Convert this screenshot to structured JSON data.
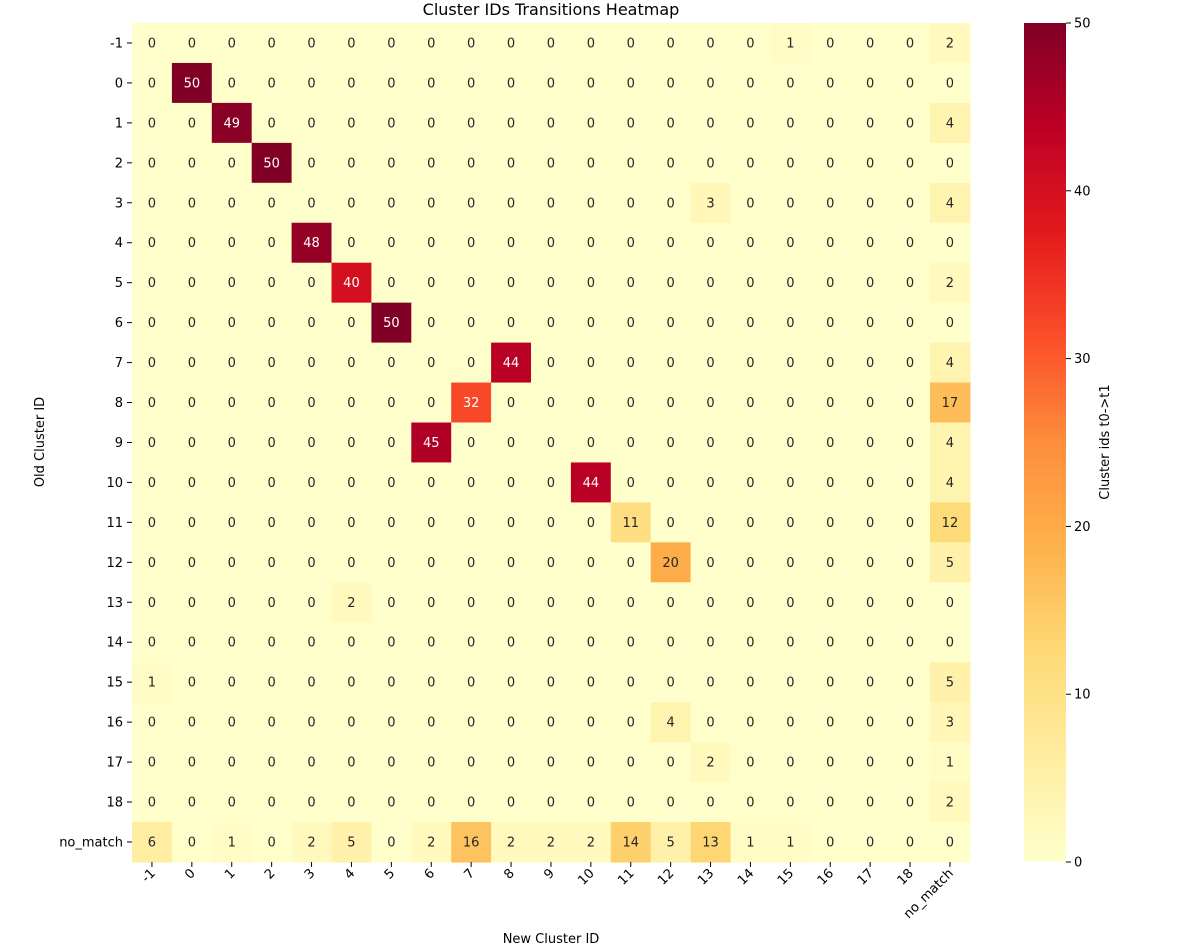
{
  "chart_data": {
    "type": "heatmap",
    "title": "Cluster IDs Transitions Heatmap",
    "xlabel": "New Cluster ID",
    "ylabel": "Old Cluster ID",
    "x_categories": [
      "-1",
      "0",
      "1",
      "2",
      "3",
      "4",
      "5",
      "6",
      "7",
      "8",
      "9",
      "10",
      "11",
      "12",
      "13",
      "14",
      "15",
      "16",
      "17",
      "18",
      "no_match"
    ],
    "y_categories": [
      "-1",
      "0",
      "1",
      "2",
      "3",
      "4",
      "5",
      "6",
      "7",
      "8",
      "9",
      "10",
      "11",
      "12",
      "13",
      "14",
      "15",
      "16",
      "17",
      "18",
      "no_match"
    ],
    "values": [
      [
        0,
        0,
        0,
        0,
        0,
        0,
        0,
        0,
        0,
        0,
        0,
        0,
        0,
        0,
        0,
        0,
        1,
        0,
        0,
        0,
        2
      ],
      [
        0,
        50,
        0,
        0,
        0,
        0,
        0,
        0,
        0,
        0,
        0,
        0,
        0,
        0,
        0,
        0,
        0,
        0,
        0,
        0,
        0
      ],
      [
        0,
        0,
        49,
        0,
        0,
        0,
        0,
        0,
        0,
        0,
        0,
        0,
        0,
        0,
        0,
        0,
        0,
        0,
        0,
        0,
        4
      ],
      [
        0,
        0,
        0,
        50,
        0,
        0,
        0,
        0,
        0,
        0,
        0,
        0,
        0,
        0,
        0,
        0,
        0,
        0,
        0,
        0,
        0
      ],
      [
        0,
        0,
        0,
        0,
        0,
        0,
        0,
        0,
        0,
        0,
        0,
        0,
        0,
        0,
        3,
        0,
        0,
        0,
        0,
        0,
        4
      ],
      [
        0,
        0,
        0,
        0,
        48,
        0,
        0,
        0,
        0,
        0,
        0,
        0,
        0,
        0,
        0,
        0,
        0,
        0,
        0,
        0,
        0
      ],
      [
        0,
        0,
        0,
        0,
        0,
        40,
        0,
        0,
        0,
        0,
        0,
        0,
        0,
        0,
        0,
        0,
        0,
        0,
        0,
        0,
        2
      ],
      [
        0,
        0,
        0,
        0,
        0,
        0,
        50,
        0,
        0,
        0,
        0,
        0,
        0,
        0,
        0,
        0,
        0,
        0,
        0,
        0,
        0
      ],
      [
        0,
        0,
        0,
        0,
        0,
        0,
        0,
        0,
        0,
        44,
        0,
        0,
        0,
        0,
        0,
        0,
        0,
        0,
        0,
        0,
        4
      ],
      [
        0,
        0,
        0,
        0,
        0,
        0,
        0,
        0,
        32,
        0,
        0,
        0,
        0,
        0,
        0,
        0,
        0,
        0,
        0,
        0,
        17
      ],
      [
        0,
        0,
        0,
        0,
        0,
        0,
        0,
        45,
        0,
        0,
        0,
        0,
        0,
        0,
        0,
        0,
        0,
        0,
        0,
        0,
        4
      ],
      [
        0,
        0,
        0,
        0,
        0,
        0,
        0,
        0,
        0,
        0,
        0,
        44,
        0,
        0,
        0,
        0,
        0,
        0,
        0,
        0,
        4
      ],
      [
        0,
        0,
        0,
        0,
        0,
        0,
        0,
        0,
        0,
        0,
        0,
        0,
        11,
        0,
        0,
        0,
        0,
        0,
        0,
        0,
        12
      ],
      [
        0,
        0,
        0,
        0,
        0,
        0,
        0,
        0,
        0,
        0,
        0,
        0,
        0,
        20,
        0,
        0,
        0,
        0,
        0,
        0,
        5
      ],
      [
        0,
        0,
        0,
        0,
        0,
        2,
        0,
        0,
        0,
        0,
        0,
        0,
        0,
        0,
        0,
        0,
        0,
        0,
        0,
        0,
        0
      ],
      [
        0,
        0,
        0,
        0,
        0,
        0,
        0,
        0,
        0,
        0,
        0,
        0,
        0,
        0,
        0,
        0,
        0,
        0,
        0,
        0,
        0
      ],
      [
        1,
        0,
        0,
        0,
        0,
        0,
        0,
        0,
        0,
        0,
        0,
        0,
        0,
        0,
        0,
        0,
        0,
        0,
        0,
        0,
        5
      ],
      [
        0,
        0,
        0,
        0,
        0,
        0,
        0,
        0,
        0,
        0,
        0,
        0,
        0,
        4,
        0,
        0,
        0,
        0,
        0,
        0,
        3
      ],
      [
        0,
        0,
        0,
        0,
        0,
        0,
        0,
        0,
        0,
        0,
        0,
        0,
        0,
        0,
        2,
        0,
        0,
        0,
        0,
        0,
        1
      ],
      [
        0,
        0,
        0,
        0,
        0,
        0,
        0,
        0,
        0,
        0,
        0,
        0,
        0,
        0,
        0,
        0,
        0,
        0,
        0,
        0,
        2
      ],
      [
        6,
        0,
        1,
        0,
        2,
        5,
        0,
        2,
        16,
        2,
        2,
        2,
        14,
        5,
        13,
        1,
        1,
        0,
        0,
        0,
        0
      ]
    ],
    "vmin": 0,
    "vmax": 50,
    "colormap": "YlOrRd",
    "colors": [
      "#ffffcc",
      "#ffeda0",
      "#fed976",
      "#feb24c",
      "#fd8d3c",
      "#fc4e2a",
      "#e31a1c",
      "#bd0026",
      "#800026"
    ],
    "colorbar": {
      "label": "Cluster ids t0->t1",
      "ticks": [
        0,
        10,
        20,
        30,
        40,
        50
      ]
    },
    "annotations": true,
    "grid": false
  }
}
